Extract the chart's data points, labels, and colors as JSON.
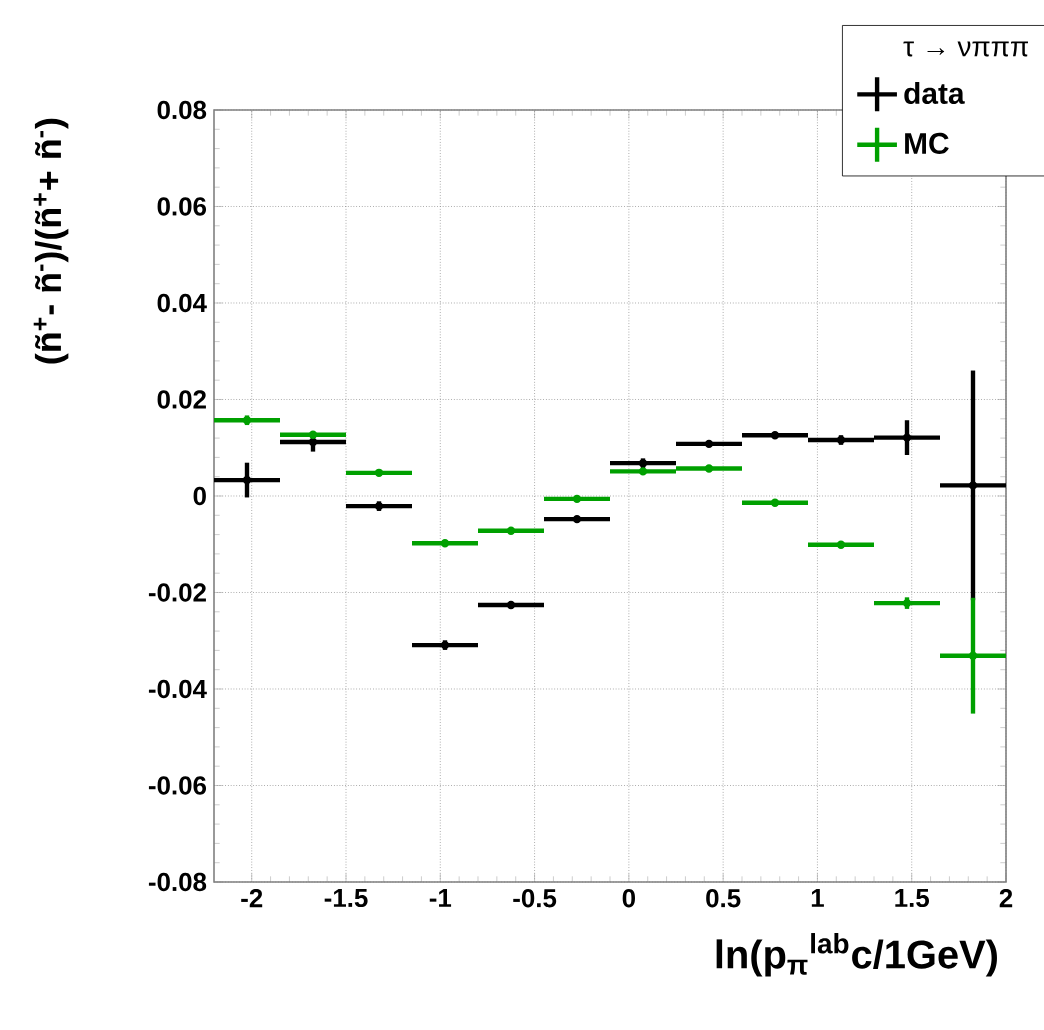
{
  "chart_data": {
    "type": "scatter",
    "xlabel": "ln(p$_{π}$$^{lab}$c/1GeV)",
    "ylabel": "(ñ$^{+}$- ñ$^{-}$)/(ñ$^{+}$+ ñ$^{-}$)",
    "legend_title": "τ → νπππ",
    "x": [
      -2.025,
      -1.675,
      -1.325,
      -0.975,
      -0.625,
      -0.275,
      0.075,
      0.425,
      0.775,
      1.125,
      1.475,
      1.825
    ],
    "series": [
      {
        "name": "data",
        "color": "#000000",
        "values": [
          0.0033,
          0.0112,
          -0.0021,
          -0.0309,
          -0.0226,
          -0.0048,
          0.0068,
          0.0108,
          0.0126,
          0.0116,
          0.0121,
          0.0022
        ],
        "errors": [
          0.0036,
          0.002,
          0.001,
          0.001,
          null,
          null,
          0.001,
          null,
          null,
          0.001,
          0.0036,
          0.0238
        ],
        "xerrors": [
          0.175,
          0.175,
          0.175,
          0.175,
          0.175,
          0.175,
          0.175,
          0.175,
          0.175,
          0.175,
          0.175,
          0.175
        ]
      },
      {
        "name": "MC",
        "color": "#00a000",
        "values": [
          0.0157,
          0.0127,
          0.0048,
          -0.0098,
          -0.0072,
          -0.0006,
          0.0051,
          0.0057,
          -0.0014,
          -0.0101,
          -0.0222,
          -0.0331
        ],
        "errors": [
          0.001,
          null,
          null,
          null,
          null,
          null,
          null,
          null,
          null,
          null,
          0.0012,
          0.012
        ],
        "xerrors": [
          0.175,
          0.175,
          0.175,
          0.175,
          0.175,
          0.175,
          0.175,
          0.175,
          0.175,
          0.175,
          0.175,
          0.175
        ]
      }
    ],
    "xlim": [
      -2.2,
      2
    ],
    "ylim": [
      -0.08,
      0.08
    ],
    "xticks": [
      -2,
      -1.5,
      -1,
      -0.5,
      0,
      0.5,
      1,
      1.5,
      2
    ],
    "yticks": [
      -0.08,
      -0.06,
      -0.04,
      -0.02,
      0,
      0.02,
      0.04,
      0.06,
      0.08
    ],
    "grid": true,
    "legend": "top right",
    "marker": "circle"
  }
}
